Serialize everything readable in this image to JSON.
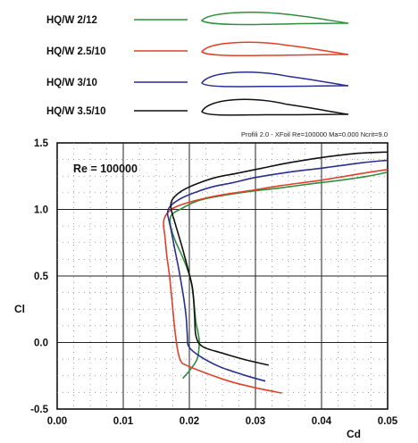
{
  "chart_data": {
    "type": "line",
    "header_note": "Profili 2.0 - XFoil Re=100000 Ma=0.000 Ncrit=9.0",
    "annotation": "Re = 100000",
    "xlabel": "Cd",
    "ylabel": "Cl",
    "xlim": [
      0.0,
      0.05
    ],
    "ylim": [
      -0.5,
      1.5
    ],
    "x_ticks": [
      "0.00",
      "0.01",
      "0.02",
      "0.03",
      "0.04",
      "0.05"
    ],
    "y_ticks": [
      "1.5",
      "1.0",
      "0.5",
      "0.0",
      "-0.5"
    ],
    "grid": true,
    "legend_position": "top",
    "series": [
      {
        "name": "HQ/W 2/12",
        "color": "#2f8f3a",
        "x": [
          0.019,
          0.0202,
          0.0212,
          0.0215,
          0.0213,
          0.021,
          0.0207,
          0.0203,
          0.0197,
          0.0189,
          0.018,
          0.0174,
          0.0171,
          0.0172,
          0.0178,
          0.0186,
          0.0197,
          0.021,
          0.0224,
          0.0245,
          0.027,
          0.03,
          0.0335,
          0.038,
          0.043,
          0.047,
          0.05
        ],
        "y": [
          -0.27,
          -0.2,
          -0.12,
          0.0,
          0.08,
          0.15,
          0.3,
          0.45,
          0.55,
          0.65,
          0.75,
          0.83,
          0.9,
          0.95,
          0.98,
          1.0,
          1.03,
          1.06,
          1.08,
          1.1,
          1.12,
          1.14,
          1.16,
          1.19,
          1.22,
          1.25,
          1.28
        ]
      },
      {
        "name": "HQ/W 2.5/10",
        "color": "#e0402a",
        "x": [
          0.034,
          0.03,
          0.026,
          0.022,
          0.0195,
          0.0187,
          0.0182,
          0.0178,
          0.0174,
          0.017,
          0.0166,
          0.0163,
          0.0161,
          0.0162,
          0.0168,
          0.018,
          0.0197,
          0.022,
          0.025,
          0.029,
          0.034,
          0.04,
          0.046,
          0.05
        ],
        "y": [
          -0.38,
          -0.34,
          -0.29,
          -0.22,
          -0.17,
          -0.14,
          -0.05,
          0.1,
          0.3,
          0.5,
          0.65,
          0.8,
          0.88,
          0.93,
          0.98,
          1.02,
          1.05,
          1.08,
          1.11,
          1.14,
          1.18,
          1.22,
          1.27,
          1.3
        ]
      },
      {
        "name": "HQ/W 3/10",
        "color": "#2a2e8f",
        "x": [
          0.0315,
          0.028,
          0.0245,
          0.0215,
          0.0199,
          0.0197,
          0.0195,
          0.019,
          0.0184,
          0.0178,
          0.0173,
          0.0169,
          0.0167,
          0.0169,
          0.0177,
          0.019,
          0.021,
          0.0235,
          0.0265,
          0.03,
          0.035,
          0.04,
          0.046,
          0.05
        ],
        "y": [
          -0.29,
          -0.24,
          -0.18,
          -0.1,
          -0.03,
          0.05,
          0.2,
          0.38,
          0.55,
          0.7,
          0.83,
          0.92,
          0.97,
          1.01,
          1.05,
          1.09,
          1.13,
          1.17,
          1.2,
          1.24,
          1.28,
          1.31,
          1.35,
          1.37
        ]
      },
      {
        "name": "HQ/W 3.5/10",
        "color": "#111111",
        "x": [
          0.032,
          0.0285,
          0.025,
          0.022,
          0.021,
          0.0208,
          0.0205,
          0.0198,
          0.019,
          0.0183,
          0.0177,
          0.0173,
          0.0172,
          0.0175,
          0.0183,
          0.0196,
          0.0215,
          0.024,
          0.027,
          0.031,
          0.035,
          0.04,
          0.045,
          0.049,
          0.05
        ],
        "y": [
          -0.17,
          -0.13,
          -0.08,
          -0.03,
          0.05,
          0.2,
          0.4,
          0.55,
          0.7,
          0.82,
          0.92,
          0.99,
          1.04,
          1.08,
          1.12,
          1.16,
          1.2,
          1.24,
          1.27,
          1.31,
          1.35,
          1.39,
          1.42,
          1.43,
          1.43
        ]
      }
    ]
  }
}
